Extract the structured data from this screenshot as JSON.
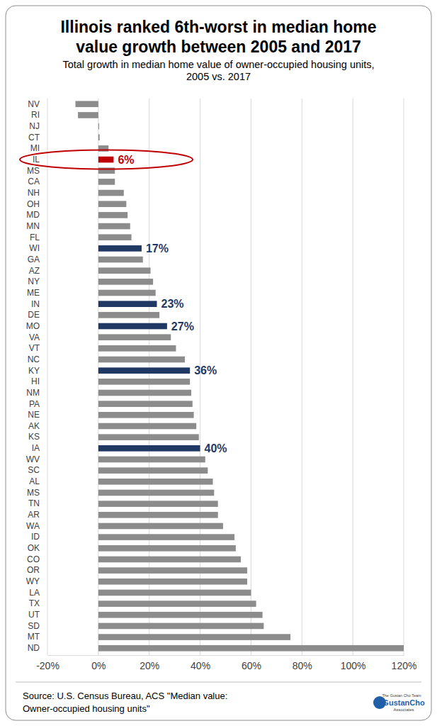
{
  "chart_data": {
    "type": "bar",
    "orientation": "horizontal",
    "title": [
      "Illinois ranked 6th-worst in median home",
      "value growth between 2005 and 2017"
    ],
    "subtitle": [
      "Total growth in median home value of owner-occupied housing units,",
      "2005 vs. 2017"
    ],
    "source": [
      "Source: U.S. Census Bureau, ACS \"Median value:",
      "Owner-occupied housing units\""
    ],
    "logo": [
      "The Gustan Cho Team",
      "GustanCho",
      "Associates"
    ],
    "categories": [
      "NV",
      "RI",
      "NJ",
      "CT",
      "MI",
      "IL",
      "MS",
      "CA",
      "NH",
      "OH",
      "MD",
      "MN",
      "FL",
      "WI",
      "GA",
      "AZ",
      "NY",
      "ME",
      "IN",
      "DE",
      "MO",
      "VA",
      "VT",
      "NC",
      "KY",
      "HI",
      "NM",
      "PA",
      "NE",
      "AK",
      "KS",
      "IA",
      "WV",
      "SC",
      "AL",
      "MS",
      "TN",
      "AR",
      "WA",
      "ID",
      "OK",
      "CO",
      "OR",
      "WY",
      "LA",
      "TX",
      "UT",
      "SD",
      "MT",
      "ND"
    ],
    "values": [
      -9,
      -8,
      0.3,
      0.5,
      4,
      6,
      6.5,
      6.5,
      10,
      11,
      11.5,
      12.5,
      13,
      17,
      17.5,
      20.5,
      21.5,
      22.5,
      23,
      24,
      27,
      28.5,
      30.5,
      34,
      36,
      36,
      36.5,
      37,
      37.5,
      38.5,
      39.5,
      40,
      42,
      43,
      45,
      45.5,
      47,
      47,
      49,
      53.5,
      54,
      56,
      58.5,
      58.5,
      60,
      62,
      64.5,
      65,
      75.5,
      120
    ],
    "value_labels": [
      null,
      null,
      null,
      null,
      null,
      "6%",
      null,
      null,
      null,
      null,
      null,
      null,
      null,
      "17%",
      null,
      null,
      null,
      null,
      "23%",
      null,
      "27%",
      null,
      null,
      null,
      "36%",
      null,
      null,
      null,
      null,
      null,
      null,
      "40%",
      null,
      null,
      null,
      null,
      null,
      null,
      null,
      null,
      null,
      null,
      null,
      null,
      null,
      null,
      null,
      null,
      null,
      null
    ],
    "data_labels": true,
    "colors": [
      "#8c8c8c",
      "#8c8c8c",
      "#8c8c8c",
      "#8c8c8c",
      "#8c8c8c",
      "#c00000",
      "#8c8c8c",
      "#8c8c8c",
      "#8c8c8c",
      "#8c8c8c",
      "#8c8c8c",
      "#8c8c8c",
      "#8c8c8c",
      "#1f3864",
      "#8c8c8c",
      "#8c8c8c",
      "#8c8c8c",
      "#8c8c8c",
      "#1f3864",
      "#8c8c8c",
      "#1f3864",
      "#8c8c8c",
      "#8c8c8c",
      "#8c8c8c",
      "#1f3864",
      "#8c8c8c",
      "#8c8c8c",
      "#8c8c8c",
      "#8c8c8c",
      "#8c8c8c",
      "#8c8c8c",
      "#1f3864",
      "#8c8c8c",
      "#8c8c8c",
      "#8c8c8c",
      "#8c8c8c",
      "#8c8c8c",
      "#8c8c8c",
      "#8c8c8c",
      "#8c8c8c",
      "#8c8c8c",
      "#8c8c8c",
      "#8c8c8c",
      "#8c8c8c",
      "#8c8c8c",
      "#8c8c8c",
      "#8c8c8c",
      "#8c8c8c",
      "#8c8c8c",
      "#8c8c8c"
    ],
    "xlim": [
      -20,
      120
    ],
    "xticks": [
      {
        "value": -20,
        "label": "-20%"
      },
      {
        "value": 0,
        "label": "0%"
      },
      {
        "value": 20,
        "label": "20%"
      },
      {
        "value": 40,
        "label": "40%"
      },
      {
        "value": 60,
        "label": "60%"
      },
      {
        "value": 80,
        "label": "80%"
      },
      {
        "value": 100,
        "label": "100%"
      },
      {
        "value": 120,
        "label": "120%"
      }
    ],
    "grid": true
  }
}
